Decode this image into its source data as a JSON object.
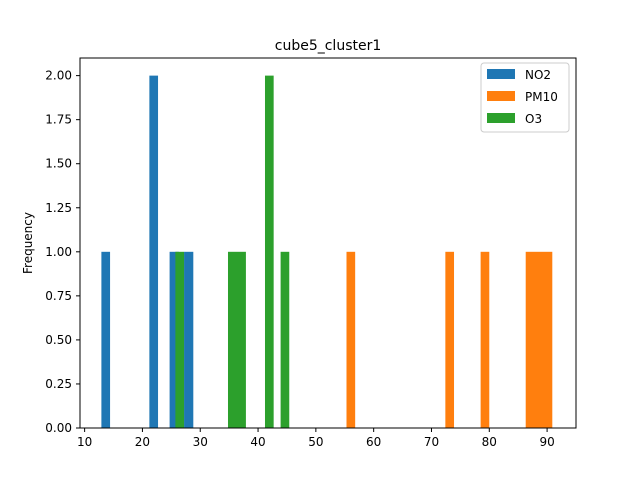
{
  "chart_data": {
    "type": "bar",
    "title": "cube5_cluster1",
    "xlabel": "",
    "ylabel": "Frequency",
    "xlim": [
      9.2,
      95.0
    ],
    "ylim": [
      0,
      2.1
    ],
    "x_ticks": [
      10,
      20,
      30,
      40,
      50,
      60,
      70,
      80,
      90
    ],
    "y_ticks": [
      0.0,
      0.25,
      0.5,
      0.75,
      1.0,
      1.25,
      1.5,
      1.75,
      2.0
    ],
    "y_tick_labels": [
      "0.00",
      "0.25",
      "0.50",
      "0.75",
      "1.00",
      "1.25",
      "1.50",
      "1.75",
      "2.00"
    ],
    "grid": false,
    "legend_position": "top-right",
    "series": [
      {
        "name": "NO2",
        "color": "#1f77b4",
        "bars": [
          {
            "x0": 12.9,
            "x1": 14.4,
            "count": 1
          },
          {
            "x0": 21.2,
            "x1": 22.7,
            "count": 2
          },
          {
            "x0": 24.7,
            "x1": 26.3,
            "count": 1
          },
          {
            "x0": 27.2,
            "x1": 28.8,
            "count": 1
          }
        ]
      },
      {
        "name": "PM10",
        "color": "#ff7f0e",
        "bars": [
          {
            "x0": 55.3,
            "x1": 56.8,
            "count": 1
          },
          {
            "x0": 72.4,
            "x1": 73.9,
            "count": 1
          },
          {
            "x0": 78.5,
            "x1": 80.0,
            "count": 1
          },
          {
            "x0": 86.3,
            "x1": 90.9,
            "count": 1
          }
        ]
      },
      {
        "name": "O3",
        "color": "#2ca02c",
        "bars": [
          {
            "x0": 25.7,
            "x1": 27.2,
            "count": 1
          },
          {
            "x0": 34.8,
            "x1": 37.9,
            "count": 1
          },
          {
            "x0": 41.2,
            "x1": 42.7,
            "count": 2
          },
          {
            "x0": 43.9,
            "x1": 45.4,
            "count": 1
          }
        ]
      }
    ]
  }
}
